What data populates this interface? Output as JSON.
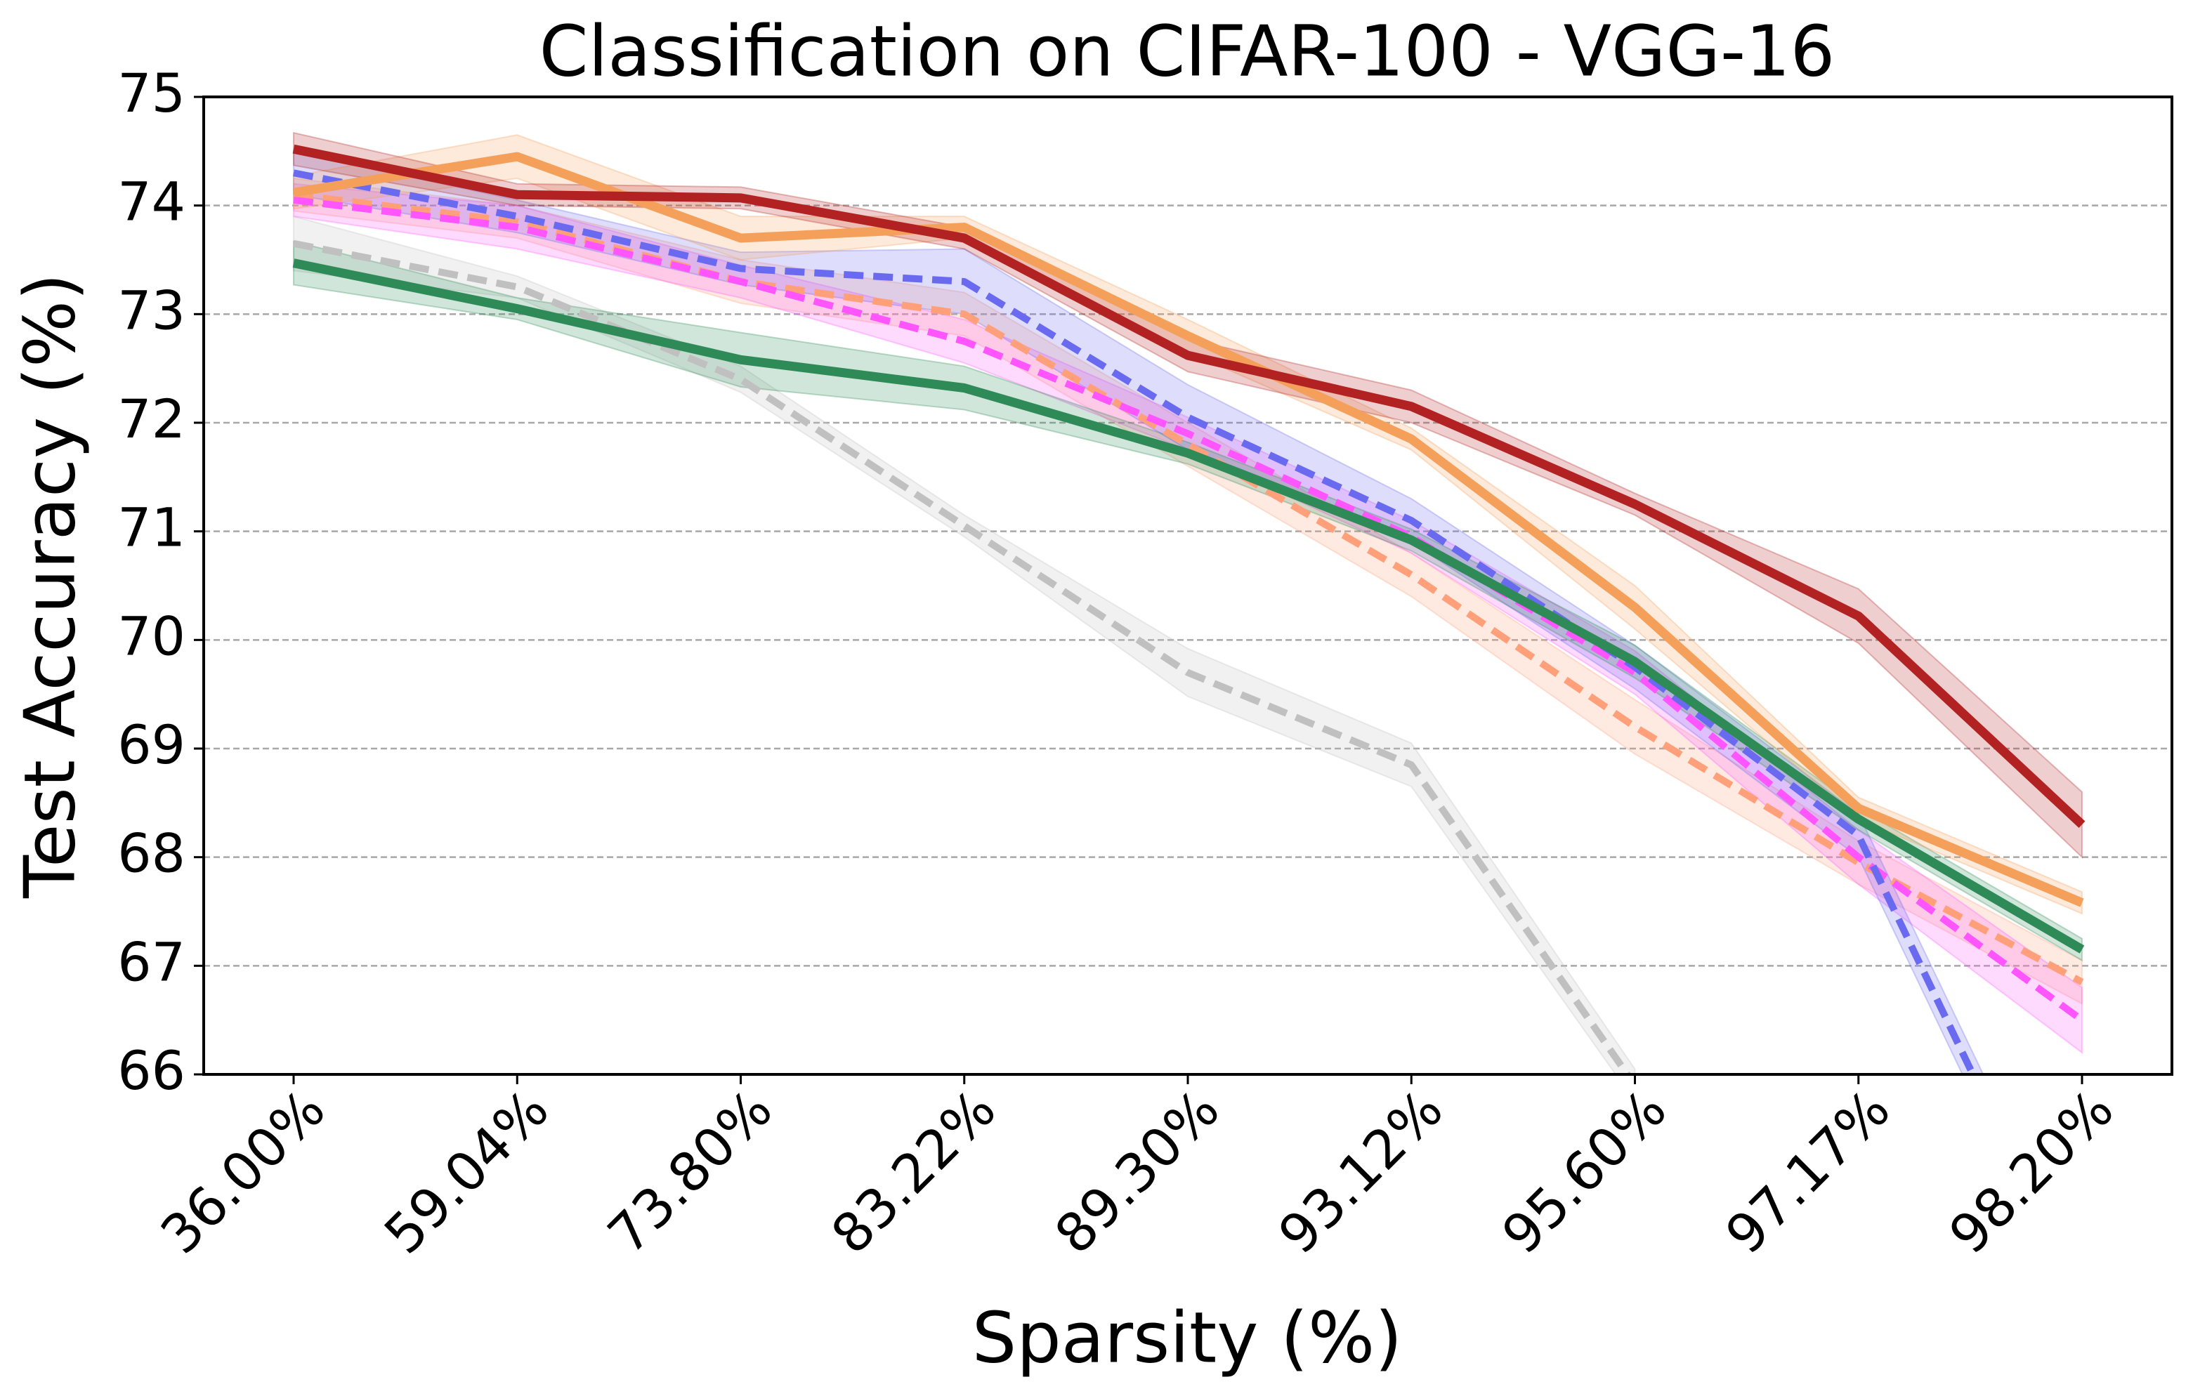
{
  "chart_data": {
    "type": "line",
    "title": "Classification on CIFAR-100 - VGG-16",
    "x_label": "Sparsity (%)",
    "y_label": "Test Accuracy (%)",
    "categories": [
      "36.00%",
      "59.04%",
      "73.80%",
      "83.22%",
      "89.30%",
      "93.12%",
      "95.60%",
      "97.17%",
      "98.20%"
    ],
    "ylim": [
      66,
      75
    ],
    "yticks": [
      66,
      67,
      68,
      69,
      70,
      71,
      72,
      73,
      74,
      75
    ],
    "grid": true,
    "series": [
      {
        "color": "#c0c0c0",
        "dashed": true,
        "values": [
          73.65,
          73.25,
          72.4,
          71.05,
          69.7,
          68.85,
          65.9,
          null,
          null
        ],
        "errors": [
          0.25,
          0.1,
          0.12,
          0.1,
          0.22,
          0.2,
          0.15,
          null,
          null
        ]
      },
      {
        "color": "#ffa07a",
        "dashed": true,
        "values": [
          74.1,
          73.85,
          73.3,
          73.0,
          71.8,
          70.6,
          69.2,
          67.95,
          66.85
        ],
        "errors": [
          0.15,
          0.15,
          0.2,
          0.2,
          0.2,
          0.2,
          0.25,
          0.2,
          0.2
        ]
      },
      {
        "color": "#ff55ff",
        "dashed": true,
        "values": [
          74.05,
          73.8,
          73.3,
          72.75,
          71.9,
          70.95,
          69.7,
          68.0,
          66.5
        ],
        "errors": [
          0.15,
          0.2,
          0.15,
          0.2,
          0.15,
          0.15,
          0.2,
          0.25,
          0.3
        ]
      },
      {
        "color": "#6a6af0",
        "dashed": true,
        "values": [
          74.3,
          73.9,
          73.42,
          73.3,
          72.05,
          71.1,
          69.75,
          68.2,
          63.9
        ],
        "errors": [
          0.2,
          0.15,
          0.15,
          0.3,
          0.3,
          0.2,
          0.2,
          0.2,
          0.2
        ]
      },
      {
        "color": "#2e8b57",
        "dashed": false,
        "values": [
          73.47,
          73.05,
          72.58,
          72.32,
          71.72,
          70.92,
          69.8,
          68.35,
          67.15
        ],
        "errors": [
          0.2,
          0.1,
          0.25,
          0.2,
          0.1,
          0.1,
          0.15,
          0.1,
          0.1
        ]
      },
      {
        "color": "#f4a05a",
        "dashed": false,
        "values": [
          74.12,
          74.45,
          73.7,
          73.8,
          72.8,
          71.85,
          70.3,
          68.45,
          67.58
        ],
        "errors": [
          0.15,
          0.2,
          0.2,
          0.1,
          0.15,
          0.1,
          0.2,
          0.1,
          0.1
        ]
      },
      {
        "color": "#b22222",
        "dashed": false,
        "values": [
          74.52,
          74.1,
          74.07,
          73.7,
          72.62,
          72.15,
          71.25,
          70.22,
          68.3
        ],
        "errors": [
          0.15,
          0.1,
          0.1,
          0.1,
          0.15,
          0.15,
          0.1,
          0.25,
          0.3
        ]
      }
    ]
  }
}
